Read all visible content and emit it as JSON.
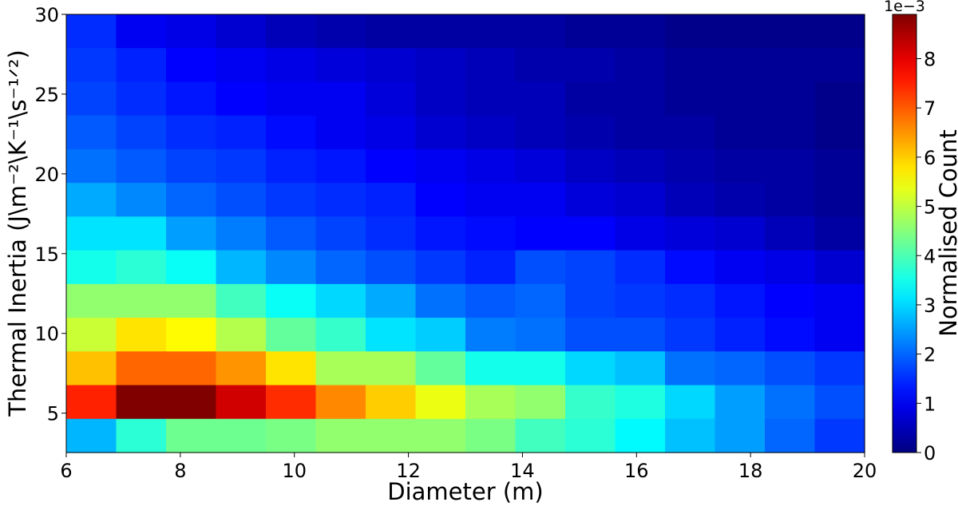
{
  "chart_data": {
    "type": "heatmap",
    "title": "",
    "xlabel": "Diameter (m)",
    "ylabel": "Thermal Inertia (J\\m⁻²\\K⁻¹\\s⁻¹ᐟ²)",
    "xlim": [
      6,
      20
    ],
    "ylim": [
      2.53,
      30
    ],
    "x_ticks": [
      "6",
      "8",
      "10",
      "12",
      "14",
      "16",
      "18",
      "20"
    ],
    "y_ticks": [
      "5",
      "10",
      "15",
      "20",
      "25",
      "30"
    ],
    "x_bins": 16,
    "y_bins": 13,
    "colormap": "jet",
    "colorbar": {
      "label": "Normalised Count",
      "multiplier": "1e−3",
      "range": [
        0,
        8.9
      ],
      "ticks": [
        "0",
        "1",
        "2",
        "3",
        "4",
        "5",
        "6",
        "7",
        "8"
      ]
    },
    "values_rows_top_to_bottom": [
      [
        1.5,
        1.0,
        0.9,
        0.7,
        0.5,
        0.4,
        0.3,
        0.3,
        0.3,
        0.3,
        0.2,
        0.2,
        0.1,
        0.1,
        0.1,
        0.1
      ],
      [
        1.6,
        1.4,
        1.1,
        1.0,
        0.9,
        0.8,
        0.7,
        0.6,
        0.5,
        0.4,
        0.4,
        0.3,
        0.2,
        0.2,
        0.2,
        0.2
      ],
      [
        1.7,
        1.5,
        1.3,
        1.1,
        1.0,
        1.0,
        0.8,
        0.6,
        0.5,
        0.5,
        0.3,
        0.3,
        0.2,
        0.2,
        0.2,
        0.1
      ],
      [
        1.9,
        1.7,
        1.5,
        1.4,
        1.2,
        1.0,
        0.9,
        0.7,
        0.6,
        0.5,
        0.4,
        0.3,
        0.3,
        0.2,
        0.2,
        0.1
      ],
      [
        2.1,
        1.9,
        1.7,
        1.6,
        1.4,
        1.3,
        1.1,
        1.0,
        0.9,
        0.8,
        0.6,
        0.5,
        0.4,
        0.3,
        0.3,
        0.2
      ],
      [
        2.6,
        2.3,
        2.0,
        1.8,
        1.6,
        1.5,
        1.4,
        1.1,
        1.0,
        1.0,
        0.8,
        0.7,
        0.5,
        0.4,
        0.3,
        0.2
      ],
      [
        3.1,
        3.1,
        2.5,
        2.2,
        1.9,
        1.7,
        1.5,
        1.3,
        1.2,
        1.1,
        1.1,
        0.9,
        0.8,
        0.7,
        0.5,
        0.3
      ],
      [
        3.5,
        3.7,
        3.4,
        2.7,
        2.3,
        2.0,
        1.8,
        1.6,
        1.4,
        1.8,
        1.7,
        1.5,
        1.2,
        1.0,
        0.9,
        0.7
      ],
      [
        4.6,
        4.6,
        4.6,
        3.9,
        3.4,
        3.0,
        2.6,
        2.1,
        1.9,
        2.0,
        1.7,
        1.6,
        1.5,
        1.3,
        1.1,
        1.0
      ],
      [
        5.1,
        5.8,
        5.6,
        4.9,
        4.2,
        3.8,
        3.1,
        2.9,
        2.2,
        2.1,
        1.8,
        1.8,
        1.6,
        1.4,
        1.2,
        1.0
      ],
      [
        6.1,
        6.9,
        6.9,
        6.5,
        5.8,
        4.8,
        4.8,
        4.2,
        3.5,
        3.5,
        3.0,
        2.8,
        2.1,
        2.0,
        1.8,
        1.6
      ],
      [
        7.5,
        8.9,
        8.9,
        8.2,
        7.4,
        6.6,
        6.0,
        5.4,
        4.8,
        4.6,
        3.8,
        3.6,
        3.0,
        2.5,
        2.1,
        1.8
      ],
      [
        2.7,
        3.7,
        4.3,
        4.3,
        4.4,
        4.6,
        4.6,
        4.6,
        4.4,
        3.9,
        3.7,
        3.3,
        2.8,
        2.5,
        2.0,
        1.6
      ]
    ]
  }
}
